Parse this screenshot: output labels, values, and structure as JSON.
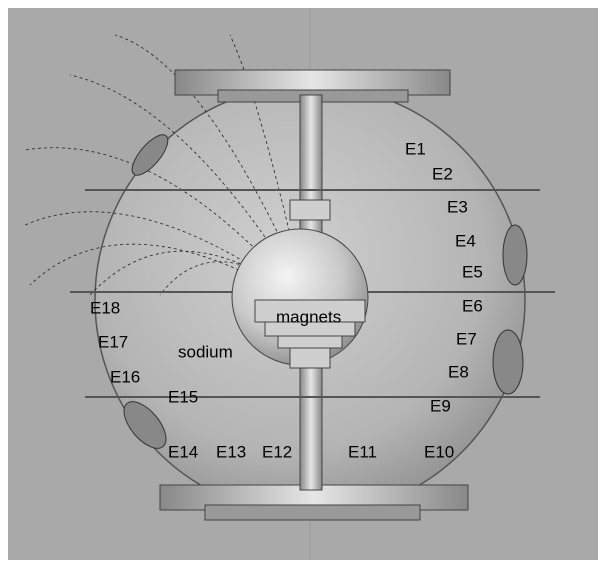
{
  "labels": {
    "probes": [
      "E1",
      "E2",
      "E3",
      "E4",
      "E5",
      "E6",
      "E7",
      "E8",
      "E9",
      "E10",
      "E11",
      "E12",
      "E13",
      "E14",
      "E15",
      "E16",
      "E17",
      "E18"
    ],
    "magnets": "magnets",
    "sodium": "sodium"
  }
}
